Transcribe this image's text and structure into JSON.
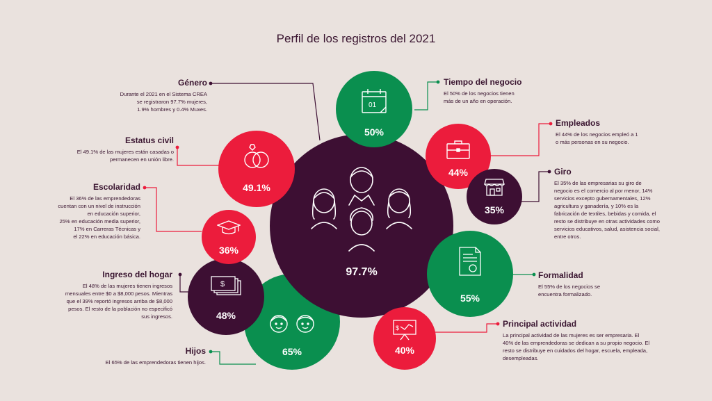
{
  "title": "Perfil de los registros del 2021",
  "center": {
    "pct": "97.7%",
    "color": "#3d0f33"
  },
  "colors": {
    "red": "#ec1c3c",
    "green": "#0a8f4f",
    "purple": "#3d0f33",
    "text": "#3a1530"
  },
  "bubbles": {
    "tiempo": "50%",
    "empleados": "44%",
    "giro": "35%",
    "formalidad": "55%",
    "actividad": "40%",
    "hijos": "65%",
    "ingreso": "48%",
    "escolaridad": "36%",
    "civil": "49.1%"
  },
  "icons": {
    "tiempo_calendar_text": "01"
  },
  "labels": {
    "genero": {
      "heading": "Género",
      "lines": [
        "Durante el 2021 en el Sistema CREA",
        "se registraron 97.7% mujeres,",
        "1.9% hombres y 0.4% Muxes."
      ]
    },
    "civil": {
      "heading": "Estatus civil",
      "lines": [
        "El 49.1% de las mujeres están casadas o",
        "permanecen en unión libre."
      ]
    },
    "escolaridad": {
      "heading": "Escolaridad",
      "lines": [
        "El 36% de las emprendedoras",
        "cuentan con un nivel de instrucción",
        "en educación superior,",
        "25% en educación media superior,",
        "17% en Carreras Técnicas y",
        "el 22% en educación básica."
      ]
    },
    "ingreso": {
      "heading": "Ingreso del hogar",
      "lines": [
        "El 48% de las mujeres tienen ingresos",
        "mensuales entre $0 a $8,000 pesos. Mientras",
        "que el 39% reportó ingresos arriba de $8,000",
        "pesos. El resto de la población no especificó",
        "sus ingresos."
      ]
    },
    "hijos": {
      "heading": "Hijos",
      "lines": [
        "El 65% de las emprendedoras tienen hijos."
      ]
    },
    "tiempo": {
      "heading": "Tiempo del negocio",
      "lines": [
        "El 50% de los negocios tienen",
        "más de un año en operación."
      ]
    },
    "empleados": {
      "heading": "Empleados",
      "lines": [
        "El 44% de los negocios empleó a 1",
        "o más personas en su negocio."
      ]
    },
    "giro": {
      "heading": "Giro",
      "lines": [
        "El 35% de las empresarias su giro de",
        "negocio es el comercio al por menor, 14%",
        "servicios excepto gubernamentales, 12%",
        "agricultura y ganadería, y 10% es la",
        "fabricación de textiles, bebidas y comida, el",
        "resto se distribuye en otras actividades como",
        "servicios educativos, salud, asistencia social,",
        "entre otros."
      ]
    },
    "formalidad": {
      "heading": "Formalidad",
      "lines": [
        "El 55% de los negocios se",
        "encuentra formalizado."
      ]
    },
    "actividad": {
      "heading": "Principal actividad",
      "lines": [
        "La principal actividad de las mujeres es ser empresaria. El",
        "40% de las emprendedoras se dedican a su propio negocio. El",
        "resto se distribuye en cuidados del hogar, escuela, empleada,",
        "desempleadas."
      ]
    }
  }
}
